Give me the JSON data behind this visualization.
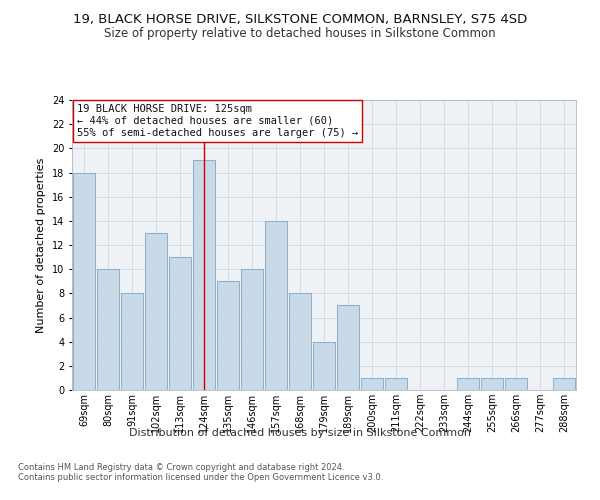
{
  "title": "19, BLACK HORSE DRIVE, SILKSTONE COMMON, BARNSLEY, S75 4SD",
  "subtitle": "Size of property relative to detached houses in Silkstone Common",
  "xlabel": "Distribution of detached houses by size in Silkstone Common",
  "ylabel": "Number of detached properties",
  "categories": [
    "69sqm",
    "80sqm",
    "91sqm",
    "102sqm",
    "113sqm",
    "124sqm",
    "135sqm",
    "146sqm",
    "157sqm",
    "168sqm",
    "179sqm",
    "189sqm",
    "200sqm",
    "211sqm",
    "222sqm",
    "233sqm",
    "244sqm",
    "255sqm",
    "266sqm",
    "277sqm",
    "288sqm"
  ],
  "values": [
    18,
    10,
    8,
    13,
    11,
    19,
    9,
    10,
    14,
    8,
    4,
    7,
    1,
    1,
    0,
    0,
    1,
    1,
    1,
    0,
    1
  ],
  "bar_color": "#c9d9e8",
  "bar_edge_color": "#7aa8c8",
  "vline_x_index": 5,
  "vline_color": "#cc0000",
  "annotation_line1": "19 BLACK HORSE DRIVE: 125sqm",
  "annotation_line2": "← 44% of detached houses are smaller (60)",
  "annotation_line3": "55% of semi-detached houses are larger (75) →",
  "annotation_box_color": "#ffffff",
  "annotation_box_edge_color": "#cc0000",
  "ylim": [
    0,
    24
  ],
  "yticks": [
    0,
    2,
    4,
    6,
    8,
    10,
    12,
    14,
    16,
    18,
    20,
    22,
    24
  ],
  "grid_color": "#d0d8e0",
  "background_color": "#eef2f6",
  "footer_line1": "Contains HM Land Registry data © Crown copyright and database right 2024.",
  "footer_line2": "Contains public sector information licensed under the Open Government Licence v3.0.",
  "title_fontsize": 9.5,
  "subtitle_fontsize": 8.5,
  "xlabel_fontsize": 8,
  "ylabel_fontsize": 8,
  "tick_fontsize": 7,
  "annotation_fontsize": 7.5,
  "footer_fontsize": 6
}
